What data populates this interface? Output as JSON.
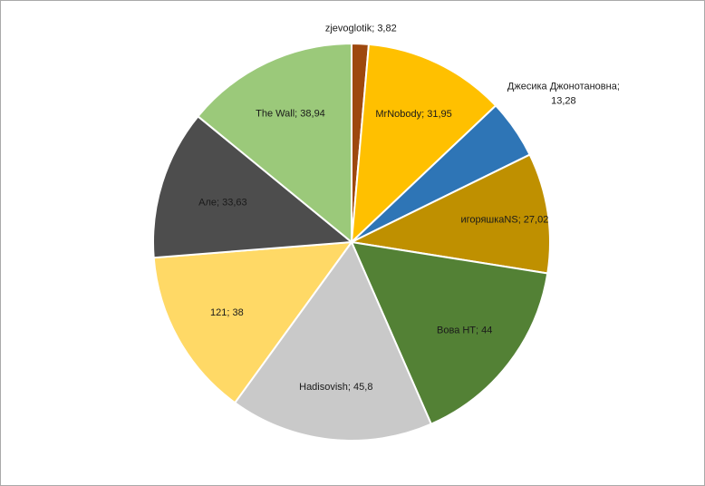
{
  "chart_data": {
    "type": "pie",
    "title": "",
    "legend": "none",
    "slices": [
      {
        "label": "zjevoglotik",
        "value": 3.82,
        "value_text": "3,82",
        "color": "#9e480e"
      },
      {
        "label": "MrNobody",
        "value": 31.95,
        "value_text": "31,95",
        "color": "#ffc000"
      },
      {
        "label": "Джесика Джонотановна",
        "value": 13.28,
        "value_text": "13,28",
        "color": "#2e75b6"
      },
      {
        "label": "игоряшкаNS",
        "value": 27.02,
        "value_text": "27,02",
        "color": "#bf9000"
      },
      {
        "label": "Вова НТ",
        "value": 44,
        "value_text": "44",
        "color": "#538135"
      },
      {
        "label": "Hadisovish",
        "value": 45.8,
        "value_text": "45,8",
        "color": "#c9c9c9"
      },
      {
        "label": "121",
        "value": 38,
        "value_text": "38",
        "color": "#ffd966"
      },
      {
        "label": "Але",
        "value": 33.63,
        "value_text": "33,63",
        "color": "#4d4d4d"
      },
      {
        "label": "The Wall",
        "value": 38.94,
        "value_text": "38,94",
        "color": "#9bc97a"
      }
    ]
  }
}
